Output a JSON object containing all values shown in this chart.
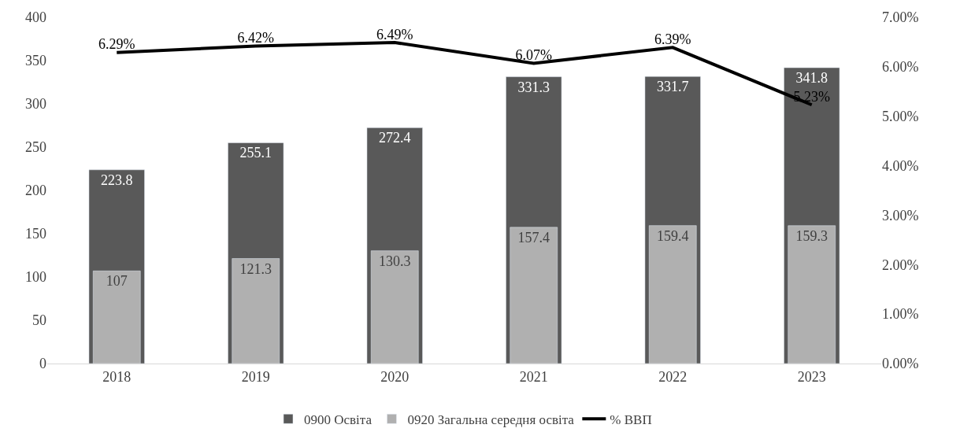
{
  "chart_data": {
    "type": "bar",
    "categories": [
      "2018",
      "2019",
      "2020",
      "2021",
      "2022",
      "2023"
    ],
    "series": [
      {
        "name": "0900 Освіта",
        "color": "#595959",
        "values": [
          223.8,
          255.1,
          272.4,
          331.3,
          331.7,
          341.8
        ]
      },
      {
        "name": "0920 Загальна середня освіта",
        "color": "#b0b0b0",
        "values": [
          107,
          121.3,
          130.3,
          157.4,
          159.4,
          159.3
        ]
      },
      {
        "name": "% ВВП",
        "type": "line",
        "axis": "y2",
        "color": "#000000",
        "values": [
          6.29,
          6.42,
          6.49,
          6.07,
          6.39,
          5.23
        ],
        "value_labels": [
          "6.29%",
          "6.42%",
          "6.49%",
          "6.07%",
          "6.39%",
          "5.23%"
        ]
      }
    ],
    "data_labels": true,
    "ylim": [
      0,
      400
    ],
    "yticks": [
      0,
      50,
      100,
      150,
      200,
      250,
      300,
      350,
      400
    ],
    "y2lim": [
      0,
      7
    ],
    "y2ticks": [
      {
        "value": 0,
        "label": "0.00%"
      },
      {
        "value": 1,
        "label": "1.00%"
      },
      {
        "value": 2,
        "label": "2.00%"
      },
      {
        "value": 3,
        "label": "3.00%"
      },
      {
        "value": 4,
        "label": "4.00%"
      },
      {
        "value": 5,
        "label": "5.00%"
      },
      {
        "value": 6,
        "label": "6.00%"
      },
      {
        "value": 7,
        "label": "7.00%"
      }
    ],
    "legend": "bottom",
    "marker": "none",
    "line_style": "solid"
  }
}
